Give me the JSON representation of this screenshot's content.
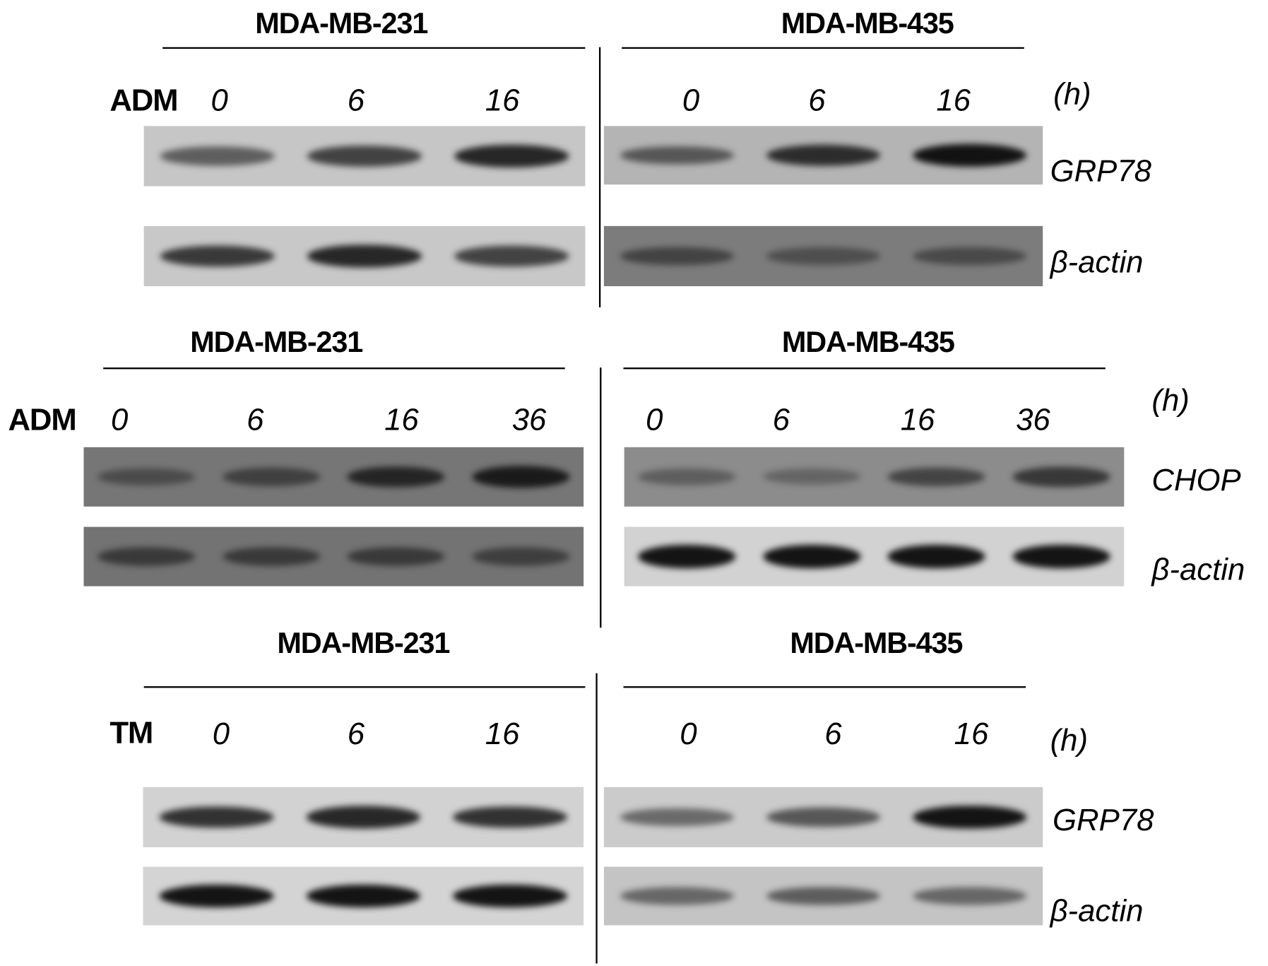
{
  "panels": [
    {
      "cell_lines": [
        "MDA-MB-231",
        "MDA-MB-435"
      ],
      "treatment": "ADM",
      "timepoints_left": [
        "0",
        "6",
        "16"
      ],
      "timepoints_right": [
        "0",
        "6",
        "16"
      ],
      "unit": "(h)",
      "rows": [
        {
          "protein": "GRP78",
          "left": {
            "bg": "#c6c6c6",
            "lanes": [
              0.55,
              0.7,
              0.85
            ]
          },
          "right": {
            "bg": "#b4b4b4",
            "lanes": [
              0.55,
              0.8,
              0.95
            ]
          }
        },
        {
          "protein": "β-actin",
          "left": {
            "bg": "#c8c8c8",
            "lanes": [
              0.75,
              0.85,
              0.7
            ]
          },
          "right": {
            "bg": "#7c7c7c",
            "lanes": [
              0.5,
              0.4,
              0.45
            ]
          }
        }
      ]
    },
    {
      "cell_lines": [
        "MDA-MB-231",
        "MDA-MB-435"
      ],
      "treatment": "ADM",
      "timepoints_left": [
        "0",
        "6",
        "16",
        "36"
      ],
      "timepoints_right": [
        "0",
        "6",
        "16",
        "36"
      ],
      "unit": "(h)",
      "rows": [
        {
          "protein": "CHOP",
          "left": {
            "bg": "#767676",
            "lanes": [
              0.4,
              0.5,
              0.75,
              0.85
            ]
          },
          "right": {
            "bg": "#8c8c8c",
            "lanes": [
              0.35,
              0.3,
              0.55,
              0.65
            ]
          }
        },
        {
          "protein": "β-actin",
          "left": {
            "bg": "#737373",
            "lanes": [
              0.55,
              0.55,
              0.55,
              0.5
            ]
          },
          "right": {
            "bg": "#d2d2d2",
            "lanes": [
              0.95,
              0.95,
              0.95,
              0.95
            ]
          }
        }
      ]
    },
    {
      "cell_lines": [
        "MDA-MB-231",
        "MDA-MB-435"
      ],
      "treatment": "TM",
      "timepoints_left": [
        "0",
        "6",
        "16"
      ],
      "timepoints_right": [
        "0",
        "6",
        "16"
      ],
      "unit": "(h)",
      "rows": [
        {
          "protein": "GRP78",
          "left": {
            "bg": "#d2d2d2",
            "lanes": [
              0.8,
              0.85,
              0.8
            ]
          },
          "right": {
            "bg": "#cbcbcb",
            "lanes": [
              0.5,
              0.6,
              0.95
            ]
          }
        },
        {
          "protein": "β-actin",
          "left": {
            "bg": "#d4d4d4",
            "lanes": [
              0.95,
              0.95,
              0.95
            ]
          },
          "right": {
            "bg": "#c4c4c4",
            "lanes": [
              0.5,
              0.55,
              0.5
            ]
          }
        }
      ]
    }
  ]
}
